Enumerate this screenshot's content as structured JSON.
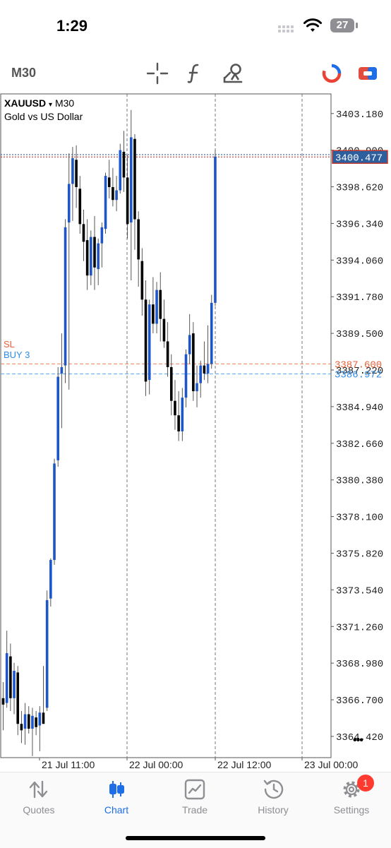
{
  "status": {
    "time": "1:29",
    "battery": "27"
  },
  "toolbar": {
    "timeframe": "M30"
  },
  "chart": {
    "symbol": "XAUUSD",
    "dropdown_glyph": "▾",
    "timeframe": "M30",
    "description": "Gold vs US Dollar",
    "current_price": "3400.477",
    "sl_label": "SL",
    "sl_price": "3387.600",
    "buy_label": "BUY 3",
    "buy_price": "3386.972",
    "more_glyph": "•••"
  },
  "chart_data": {
    "type": "candlestick",
    "ylim": [
      3363.1,
      3404.4
    ],
    "y_ticks": [
      "3403.180",
      "3400.900",
      "3398.620",
      "3396.340",
      "3394.060",
      "3391.780",
      "3389.500",
      "3387.220",
      "3384.940",
      "3382.660",
      "3380.380",
      "3378.100",
      "3375.820",
      "3373.540",
      "3371.260",
      "3368.980",
      "3366.700",
      "3364.420"
    ],
    "x_ticks": [
      "21 Jul 11:00",
      "22 Jul 00:00",
      "22 Jul 12:00",
      "23 Jul 00:00"
    ],
    "levels": {
      "sl": 3387.6,
      "buy": 3386.972,
      "bid": 3400.477,
      "ask": 3400.62
    },
    "candles": [
      {
        "o": 3366.8,
        "h": 3367.8,
        "l": 3364.8,
        "c": 3366.4
      },
      {
        "o": 3366.5,
        "h": 3371.0,
        "l": 3366.2,
        "c": 3369.6
      },
      {
        "o": 3369.4,
        "h": 3370.2,
        "l": 3366.0,
        "c": 3366.8
      },
      {
        "o": 3366.8,
        "h": 3369.0,
        "l": 3365.8,
        "c": 3368.5
      },
      {
        "o": 3368.4,
        "h": 3368.8,
        "l": 3364.5,
        "c": 3365.2
      },
      {
        "o": 3365.2,
        "h": 3366.0,
        "l": 3364.0,
        "c": 3364.8
      },
      {
        "o": 3364.9,
        "h": 3366.5,
        "l": 3363.9,
        "c": 3365.8
      },
      {
        "o": 3365.8,
        "h": 3366.3,
        "l": 3364.6,
        "c": 3364.9
      },
      {
        "o": 3364.9,
        "h": 3366.2,
        "l": 3363.2,
        "c": 3365.7
      },
      {
        "o": 3365.6,
        "h": 3366.0,
        "l": 3364.5,
        "c": 3365.0
      },
      {
        "o": 3365.1,
        "h": 3366.3,
        "l": 3363.5,
        "c": 3365.9
      },
      {
        "o": 3365.9,
        "h": 3368.8,
        "l": 3365.3,
        "c": 3365.2
      },
      {
        "o": 3366.2,
        "h": 3373.5,
        "l": 3366.0,
        "c": 3372.9
      },
      {
        "o": 3373.0,
        "h": 3375.5,
        "l": 3372.5,
        "c": 3375.4
      },
      {
        "o": 3375.4,
        "h": 3381.7,
        "l": 3375.1,
        "c": 3381.4
      },
      {
        "o": 3381.6,
        "h": 3387.4,
        "l": 3381.2,
        "c": 3386.8
      },
      {
        "o": 3387.0,
        "h": 3389.5,
        "l": 3383.6,
        "c": 3387.4
      },
      {
        "o": 3387.5,
        "h": 3396.6,
        "l": 3386.4,
        "c": 3396.1
      },
      {
        "o": 3396.4,
        "h": 3400.7,
        "l": 3386.0,
        "c": 3398.8
      },
      {
        "o": 3398.8,
        "h": 3401.1,
        "l": 3396.5,
        "c": 3400.4
      },
      {
        "o": 3400.3,
        "h": 3401.2,
        "l": 3397.3,
        "c": 3398.6
      },
      {
        "o": 3398.5,
        "h": 3399.3,
        "l": 3395.7,
        "c": 3396.3
      },
      {
        "o": 3396.3,
        "h": 3397.2,
        "l": 3394.0,
        "c": 3395.2
      },
      {
        "o": 3395.3,
        "h": 3396.6,
        "l": 3392.2,
        "c": 3393.1
      },
      {
        "o": 3393.1,
        "h": 3395.9,
        "l": 3392.5,
        "c": 3395.5
      },
      {
        "o": 3395.5,
        "h": 3396.8,
        "l": 3392.2,
        "c": 3393.6
      },
      {
        "o": 3393.5,
        "h": 3395.4,
        "l": 3392.5,
        "c": 3395.1
      },
      {
        "o": 3395.1,
        "h": 3396.4,
        "l": 3393.6,
        "c": 3396.1
      },
      {
        "o": 3396.0,
        "h": 3399.5,
        "l": 3395.7,
        "c": 3399.3
      },
      {
        "o": 3399.2,
        "h": 3400.3,
        "l": 3397.9,
        "c": 3398.6
      },
      {
        "o": 3398.6,
        "h": 3399.8,
        "l": 3397.4,
        "c": 3397.8
      },
      {
        "o": 3397.8,
        "h": 3399.3,
        "l": 3397.1,
        "c": 3398.4
      },
      {
        "o": 3398.4,
        "h": 3401.3,
        "l": 3398.2,
        "c": 3400.9
      },
      {
        "o": 3400.8,
        "h": 3402.1,
        "l": 3398.3,
        "c": 3399.2
      },
      {
        "o": 3399.2,
        "h": 3400.6,
        "l": 3395.4,
        "c": 3396.3
      },
      {
        "o": 3396.4,
        "h": 3403.4,
        "l": 3392.8,
        "c": 3401.7
      },
      {
        "o": 3401.6,
        "h": 3401.9,
        "l": 3394.7,
        "c": 3396.6
      },
      {
        "o": 3396.6,
        "h": 3397.1,
        "l": 3392.4,
        "c": 3394.1
      },
      {
        "o": 3394.0,
        "h": 3394.8,
        "l": 3390.6,
        "c": 3391.6
      },
      {
        "o": 3391.6,
        "h": 3392.8,
        "l": 3385.6,
        "c": 3386.5
      },
      {
        "o": 3386.6,
        "h": 3391.6,
        "l": 3385.7,
        "c": 3391.3
      },
      {
        "o": 3391.3,
        "h": 3393.0,
        "l": 3389.5,
        "c": 3390.1
      },
      {
        "o": 3390.1,
        "h": 3392.7,
        "l": 3389.5,
        "c": 3392.2
      },
      {
        "o": 3392.2,
        "h": 3393.3,
        "l": 3389.0,
        "c": 3390.4
      },
      {
        "o": 3390.4,
        "h": 3391.6,
        "l": 3388.6,
        "c": 3389.0
      },
      {
        "o": 3389.0,
        "h": 3390.2,
        "l": 3386.8,
        "c": 3387.4
      },
      {
        "o": 3387.4,
        "h": 3388.2,
        "l": 3384.4,
        "c": 3385.3
      },
      {
        "o": 3385.3,
        "h": 3386.6,
        "l": 3383.5,
        "c": 3384.4
      },
      {
        "o": 3384.4,
        "h": 3385.9,
        "l": 3382.8,
        "c": 3383.4
      },
      {
        "o": 3383.4,
        "h": 3386.1,
        "l": 3382.8,
        "c": 3385.5
      },
      {
        "o": 3385.5,
        "h": 3388.5,
        "l": 3384.9,
        "c": 3388.2
      },
      {
        "o": 3388.2,
        "h": 3390.7,
        "l": 3387.6,
        "c": 3389.4
      },
      {
        "o": 3389.5,
        "h": 3390.2,
        "l": 3385.3,
        "c": 3385.9
      },
      {
        "o": 3385.9,
        "h": 3387.5,
        "l": 3384.9,
        "c": 3386.4
      },
      {
        "o": 3386.4,
        "h": 3387.8,
        "l": 3385.5,
        "c": 3387.5
      },
      {
        "o": 3387.5,
        "h": 3389.0,
        "l": 3386.6,
        "c": 3387.0
      },
      {
        "o": 3387.0,
        "h": 3390.0,
        "l": 3386.4,
        "c": 3387.6
      },
      {
        "o": 3387.6,
        "h": 3391.9,
        "l": 3387.3,
        "c": 3391.4
      },
      {
        "o": 3391.4,
        "h": 3400.9,
        "l": 3391.2,
        "c": 3400.5
      }
    ]
  },
  "tabs": [
    {
      "label": "Quotes",
      "icon": "quotes-arrows-icon"
    },
    {
      "label": "Chart",
      "icon": "chart-candles-icon"
    },
    {
      "label": "Trade",
      "icon": "trade-chart-icon"
    },
    {
      "label": "History",
      "icon": "history-clock-icon"
    },
    {
      "label": "Settings",
      "icon": "settings-gear-icon"
    }
  ],
  "settings_badge": "1",
  "colors": {
    "accent": "#1e6ee8",
    "bull": "#1e56c8",
    "bear": "#000000",
    "sl": "#e8623a",
    "buy": "#2e8be6",
    "bid_line": "#c0392b",
    "ask_line": "#4a6fa5",
    "price_tag": "#2d5f9e",
    "badge": "#ff3b30"
  }
}
